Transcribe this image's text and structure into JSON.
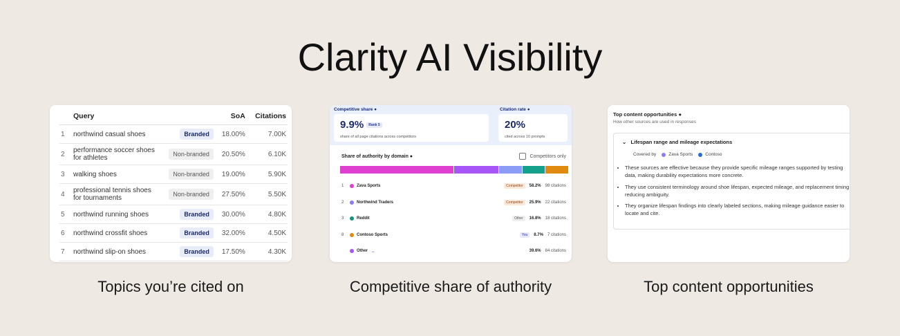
{
  "title": "Clarity AI Visibility",
  "topics": {
    "columns": [
      "Query",
      "SoA",
      "Citations"
    ],
    "rows": [
      {
        "rank": 1,
        "query": "northwind casual shoes",
        "type": "Branded",
        "soa": "18.00%",
        "citations": "7.00K"
      },
      {
        "rank": 2,
        "query": "performance soccer shoes for athletes",
        "type": "Non-branded",
        "soa": "20.50%",
        "citations": "6.10K"
      },
      {
        "rank": 3,
        "query": "walking shoes",
        "type": "Non-branded",
        "soa": "19.00%",
        "citations": "5.90K"
      },
      {
        "rank": 4,
        "query": "professional tennis shoes for tournaments",
        "type": "Non-branded",
        "soa": "27.50%",
        "citations": "5.50K"
      },
      {
        "rank": 5,
        "query": "northwind running shoes",
        "type": "Branded",
        "soa": "30.00%",
        "citations": "4.80K"
      },
      {
        "rank": 6,
        "query": "northwind crossfit shoes",
        "type": "Branded",
        "soa": "32.00%",
        "citations": "4.50K"
      },
      {
        "rank": 7,
        "query": "northwind slip-on shoes",
        "type": "Branded",
        "soa": "17.50%",
        "citations": "4.30K"
      }
    ],
    "caption": "Topics you’re cited on"
  },
  "competitive": {
    "share_label": "Competitive share",
    "share_value": "9.9%",
    "rank": "Rank 5",
    "share_note": "share of all page citations across competitors",
    "rate_label": "Citation rate",
    "rate_value": "20%",
    "rate_note": "cited across 10 prompts",
    "domain_title": "Share of authority by domain",
    "filter_label": "Competitors only",
    "domains": [
      {
        "rank": 1,
        "name": "Zava Sports",
        "badge": "Competitor",
        "share": "58.2%",
        "citations": "98 citations",
        "color": "#e040d0"
      },
      {
        "rank": 2,
        "name": "Northwind Traders",
        "badge": "Competitor",
        "share": "25.9%",
        "citations": "22 citations",
        "color": "#8b7cf0"
      },
      {
        "rank": 3,
        "name": "Reddit",
        "badge": "Other",
        "share": "16.8%",
        "citations": "18 citations",
        "color": "#14967e"
      },
      {
        "rank": 8,
        "name": "Contoso Sports",
        "badge": "You",
        "share": "8.7%",
        "citations": "7 citations",
        "color": "#e08a10"
      },
      {
        "name": "Other",
        "share": "39.6%",
        "citations": "84 citations",
        "color": "#a855f7"
      }
    ],
    "caption": "Competitive share of authority"
  },
  "opportunities": {
    "title": "Top content opportunities",
    "subtitle": "How other sources are used in responses",
    "topic": "Lifespan range and mileage expectations",
    "covered_label": "Covered by",
    "covered": [
      {
        "name": "Zava Sports",
        "color": "#8b7cf0"
      },
      {
        "name": "Contoso",
        "color": "#1f6fd1"
      }
    ],
    "bullets": [
      "These sources are effective because they provide specific mileage ranges supported by testing data, making durability expectations more concrete.",
      "They use consistent terminology around shoe lifespan, expected mileage, and replacement timing, reducing ambiguity.",
      "They organize lifespan findings into clearly labeled sections, making mileage guidance easier to locate and cite."
    ],
    "caption": "Top content opportunities"
  }
}
